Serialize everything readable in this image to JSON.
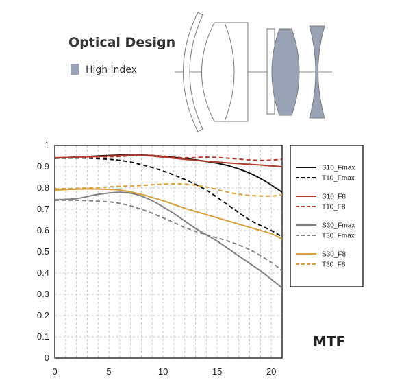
{
  "optical_design": {
    "title": "Optical Design",
    "legend_label": "High index",
    "high_index_color": "#98a2b4",
    "element_outline_color": "#7a7a7a"
  },
  "mtf_label": "MTF",
  "chart_data": {
    "type": "line",
    "title": "",
    "xlabel": "",
    "ylabel": "",
    "xlim": [
      0,
      21
    ],
    "ylim": [
      0,
      1
    ],
    "x_ticks": [
      0,
      5,
      10,
      15,
      20
    ],
    "y_ticks": [
      0,
      0.1,
      0.2,
      0.3,
      0.4,
      0.5,
      0.6,
      0.7,
      0.8,
      0.9,
      1
    ],
    "x_tick_labels": [
      "0",
      "5",
      "10",
      "15",
      "20"
    ],
    "y_tick_labels": [
      "0",
      "0.1",
      "0.2",
      "0.3",
      "0.4",
      "0.5",
      "0.6",
      "0.7",
      "0.8",
      "0.9",
      "1"
    ],
    "grid": true,
    "legend_position": "right",
    "series": [
      {
        "name": "S10_Fmax",
        "color": "#111111",
        "dash": false,
        "x": [
          0,
          3,
          6,
          8,
          10,
          12,
          14,
          16,
          18,
          19.5,
          21
        ],
        "y": [
          0.94,
          0.948,
          0.955,
          0.955,
          0.948,
          0.938,
          0.925,
          0.905,
          0.87,
          0.83,
          0.78
        ]
      },
      {
        "name": "T10_Fmax",
        "color": "#111111",
        "dash": true,
        "x": [
          0,
          3,
          6,
          8,
          10,
          12,
          14,
          16,
          18,
          20,
          21
        ],
        "y": [
          0.94,
          0.94,
          0.93,
          0.91,
          0.88,
          0.84,
          0.79,
          0.72,
          0.65,
          0.6,
          0.57
        ]
      },
      {
        "name": "S10_F8",
        "color": "#b03a2e",
        "dash": false,
        "x": [
          0,
          4,
          7.5,
          10,
          13,
          16,
          19,
          21
        ],
        "y": [
          0.942,
          0.948,
          0.955,
          0.945,
          0.93,
          0.918,
          0.908,
          0.9
        ]
      },
      {
        "name": "T10_F8",
        "color": "#b03a2e",
        "dash": true,
        "x": [
          0,
          3,
          6,
          8,
          10,
          12,
          14,
          16,
          18,
          19.5,
          21
        ],
        "y": [
          0.942,
          0.945,
          0.948,
          0.955,
          0.95,
          0.942,
          0.945,
          0.94,
          0.932,
          0.93,
          0.935
        ]
      },
      {
        "name": "S30_Fmax",
        "color": "#808080",
        "dash": false,
        "x": [
          0,
          2,
          4,
          6,
          7.5,
          9,
          11,
          13,
          15,
          17,
          19,
          21
        ],
        "y": [
          0.745,
          0.75,
          0.77,
          0.78,
          0.77,
          0.74,
          0.68,
          0.61,
          0.55,
          0.48,
          0.41,
          0.33
        ]
      },
      {
        "name": "T30_Fmax",
        "color": "#808080",
        "dash": true,
        "x": [
          0,
          2,
          4,
          6,
          8,
          10,
          12,
          14,
          16,
          18,
          20,
          21
        ],
        "y": [
          0.742,
          0.742,
          0.738,
          0.728,
          0.7,
          0.66,
          0.615,
          0.58,
          0.55,
          0.51,
          0.45,
          0.41
        ]
      },
      {
        "name": "S30_F8",
        "color": "#d8a03a",
        "dash": false,
        "x": [
          0,
          3,
          6,
          8,
          10,
          12,
          14,
          16,
          18,
          20,
          21
        ],
        "y": [
          0.79,
          0.795,
          0.79,
          0.77,
          0.74,
          0.705,
          0.675,
          0.645,
          0.615,
          0.585,
          0.56
        ]
      },
      {
        "name": "T30_F8",
        "color": "#d8a03a",
        "dash": true,
        "x": [
          0,
          3,
          6,
          8,
          10,
          12,
          14,
          16,
          18,
          20,
          21
        ],
        "y": [
          0.795,
          0.8,
          0.808,
          0.812,
          0.818,
          0.818,
          0.805,
          0.78,
          0.765,
          0.762,
          0.768
        ]
      }
    ]
  }
}
